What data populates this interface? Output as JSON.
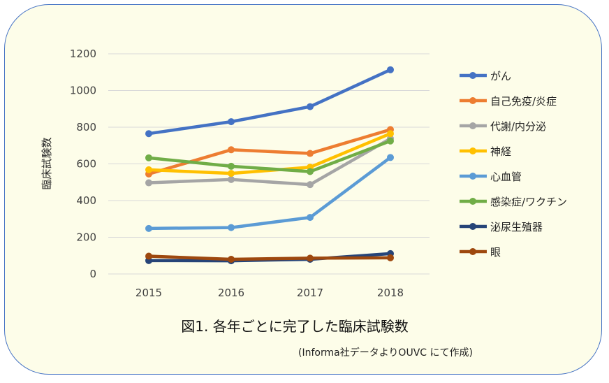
{
  "chart_data": {
    "type": "line",
    "title": "",
    "xlabel": "",
    "ylabel": "臨床試験数",
    "x": [
      "2015",
      "2016",
      "2017",
      "2018"
    ],
    "yticks": [
      "0",
      "200",
      "400",
      "600",
      "800",
      "1000",
      "1200"
    ],
    "ylim": [
      0,
      1200
    ],
    "grid": "horizontal",
    "legend_position": "right",
    "series": [
      {
        "name": "がん",
        "color": "#4472c4",
        "values": [
          765,
          830,
          912,
          1113
        ]
      },
      {
        "name": "自己免疫/炎症",
        "color": "#ed7d31",
        "values": [
          545,
          677,
          657,
          787
        ]
      },
      {
        "name": "代謝/内分泌",
        "color": "#a5a5a5",
        "values": [
          497,
          515,
          487,
          738
        ]
      },
      {
        "name": "神経",
        "color": "#ffc000",
        "values": [
          568,
          548,
          582,
          765
        ]
      },
      {
        "name": "心血管",
        "color": "#5b9bd5",
        "values": [
          248,
          253,
          308,
          635
        ]
      },
      {
        "name": "感染症/ワクチン",
        "color": "#70ad47",
        "values": [
          633,
          587,
          558,
          725
        ]
      },
      {
        "name": "泌尿生殖器",
        "color": "#264478",
        "values": [
          73,
          72,
          80,
          111
        ]
      },
      {
        "name": "眼",
        "color": "#9e480e",
        "values": [
          97,
          80,
          86,
          88
        ]
      }
    ]
  },
  "caption": "図1. 各年ごとに完了した臨床試験数",
  "source": "(Informa社データよりOUVC にて作成)"
}
